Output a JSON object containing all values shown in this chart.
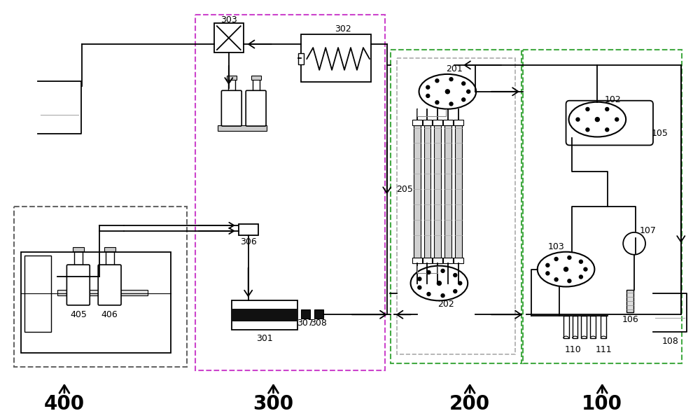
{
  "bg_color": "#ffffff",
  "line_color": "#000000",
  "gray_line": "#888888",
  "purple_dash": "#cc44cc",
  "green_dash": "#44aa44",
  "gray_dash": "#666666",
  "lw": 1.3
}
